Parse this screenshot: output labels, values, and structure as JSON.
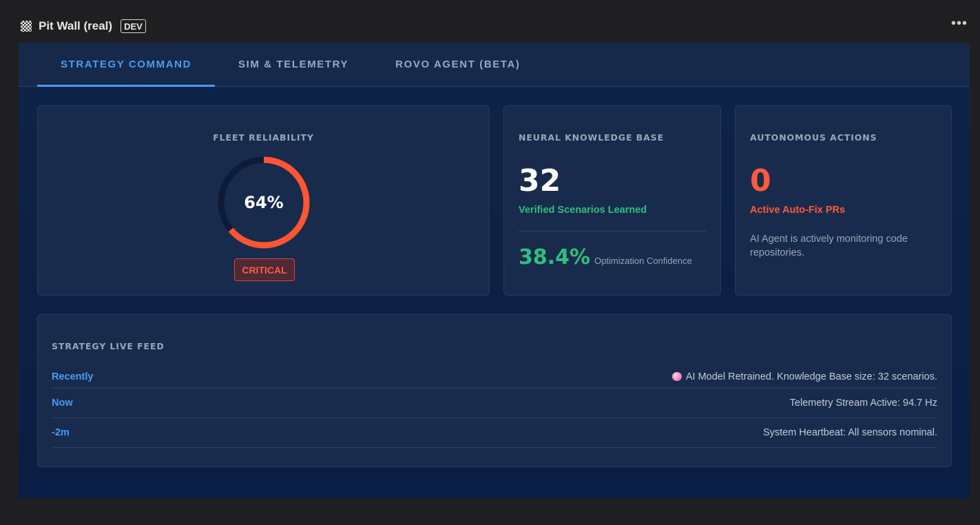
{
  "app": {
    "title": "Pit Wall (real)",
    "env_badge": "DEV",
    "more_menu": "•••"
  },
  "tabs": [
    {
      "label": "STRATEGY COMMAND",
      "active": true
    },
    {
      "label": "SIM & TELEMETRY",
      "active": false
    },
    {
      "label": "ROVO AGENT (BETA)",
      "active": false
    }
  ],
  "fleet": {
    "heading": "FLEET RELIABILITY",
    "value_text": "64%",
    "value": 64,
    "status": "CRITICAL",
    "gauge_color": "#ff5533",
    "track_color": "#0d1b38"
  },
  "neural": {
    "heading": "NEURAL KNOWLEDGE BASE",
    "count": "32",
    "count_label": "Verified Scenarios Learned",
    "confidence": "38.4%",
    "confidence_label": "Optimization Confidence"
  },
  "autonomous": {
    "heading": "AUTONOMOUS ACTIONS",
    "count": "0",
    "count_label": "Active Auto-Fix PRs",
    "description": "AI Agent is actively monitoring code repositories."
  },
  "feed": {
    "heading": "STRATEGY LIVE FEED",
    "items": [
      {
        "time": "Recently",
        "message": "AI Model Retrained. Knowledge Base size: 32 scenarios.",
        "icon": "brain-icon"
      },
      {
        "time": "Now",
        "message": "Telemetry Stream Active: 94.7 Hz"
      },
      {
        "time": "-2m",
        "message": "System Heartbeat: All sensors nominal."
      }
    ]
  },
  "colors": {
    "accent_blue": "#4c9bf6",
    "success_green": "#2fbf7d",
    "danger_red": "#ff5b3a"
  }
}
